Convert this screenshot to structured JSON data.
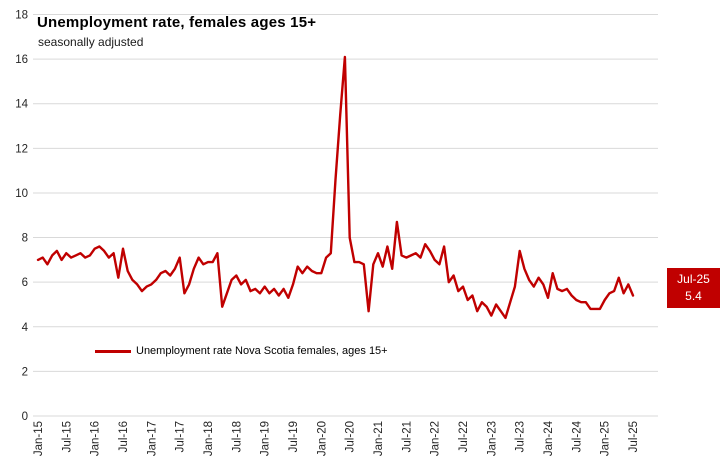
{
  "header": {
    "title": "Unemployment rate, females ages 15+",
    "subtitle": "seasonally adjusted"
  },
  "legend": {
    "label": "Unemployment rate Nova Scotia females, ages 15+"
  },
  "annotation": {
    "line1": "Jul-25",
    "line2": "5.4"
  },
  "colors": {
    "line": "#C00000",
    "gridline": "#D9D9D9",
    "axis_text": "#262626",
    "annotation_bg": "#C00000",
    "annotation_text": "#FFFFFF"
  },
  "chart_data": {
    "type": "line",
    "title": "Unemployment rate, females ages 15+",
    "subtitle": "seasonally adjusted",
    "frequency": "monthly",
    "x_start": "Jan-15",
    "x_end": "Jul-25",
    "x_tick_labels": [
      "Jan-15",
      "Jul-15",
      "Jan-16",
      "Jul-16",
      "Jan-17",
      "Jul-17",
      "Jan-18",
      "Jul-18",
      "Jan-19",
      "Jul-19",
      "Jan-20",
      "Jul-20",
      "Jan-21",
      "Jul-21",
      "Jan-22",
      "Jul-22",
      "Jan-23",
      "Jul-23",
      "Jan-24",
      "Jul-24",
      "Jan-25",
      "Jul-25"
    ],
    "x_tick_interval_months": 6,
    "y_tick_labels": [
      0,
      2,
      4,
      6,
      8,
      10,
      12,
      14,
      16,
      18
    ],
    "ylim": [
      0,
      18
    ],
    "grid": "horizontal",
    "legend_position": "bottom-left",
    "series": [
      {
        "name": "Unemployment rate Nova Scotia females, ages 15+",
        "color": "#C00000",
        "values": [
          7.0,
          7.1,
          6.8,
          7.2,
          7.4,
          7.0,
          7.3,
          7.1,
          7.2,
          7.3,
          7.1,
          7.2,
          7.5,
          7.6,
          7.4,
          7.1,
          7.3,
          6.2,
          7.5,
          6.5,
          6.1,
          5.9,
          5.6,
          5.8,
          5.9,
          6.1,
          6.4,
          6.5,
          6.3,
          6.6,
          7.1,
          5.5,
          5.9,
          6.6,
          7.1,
          6.8,
          6.9,
          6.9,
          7.3,
          4.9,
          5.5,
          6.1,
          6.3,
          5.9,
          6.1,
          5.6,
          5.7,
          5.5,
          5.8,
          5.5,
          5.7,
          5.4,
          5.7,
          5.3,
          5.9,
          6.7,
          6.4,
          6.7,
          6.5,
          6.4,
          6.4,
          7.1,
          7.3,
          10.6,
          13.5,
          16.1,
          8.0,
          6.9,
          6.9,
          6.8,
          4.7,
          6.8,
          7.3,
          6.7,
          7.6,
          6.6,
          8.7,
          7.2,
          7.1,
          7.2,
          7.3,
          7.1,
          7.7,
          7.4,
          7.0,
          6.8,
          7.6,
          6.0,
          6.3,
          5.6,
          5.8,
          5.2,
          5.4,
          4.7,
          5.1,
          4.9,
          4.5,
          5.0,
          4.7,
          4.4,
          5.1,
          5.8,
          7.4,
          6.6,
          6.1,
          5.8,
          6.2,
          5.9,
          5.3,
          6.4,
          5.7,
          5.6,
          5.7,
          5.4,
          5.2,
          5.1,
          5.1,
          4.8,
          4.8,
          4.8,
          5.2,
          5.5,
          5.6,
          6.2,
          5.5,
          5.9,
          5.4
        ]
      }
    ],
    "end_label": {
      "x": "Jul-25",
      "value": 5.4
    }
  }
}
